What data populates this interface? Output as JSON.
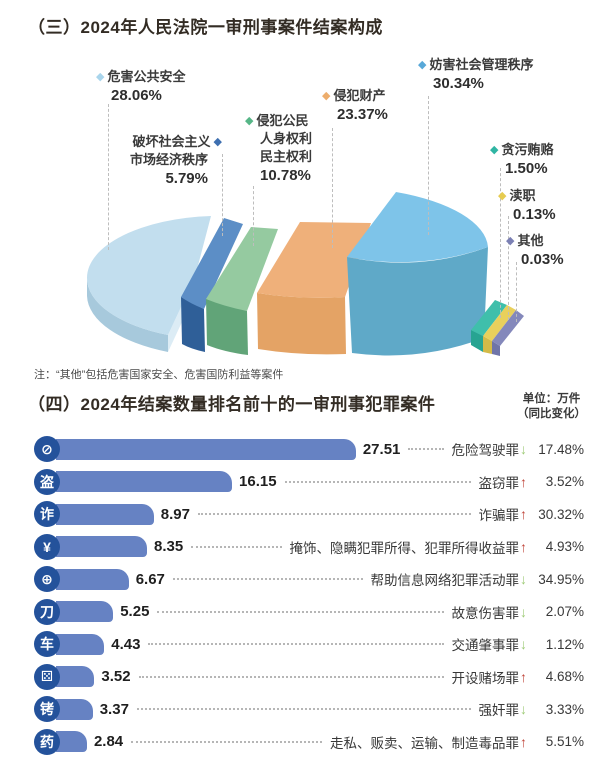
{
  "pie": {
    "title": "（三）2024年人民法院一审刑事案件结案构成",
    "note": "注：“其他”包括危害国家安全、危害国防利益等案件",
    "labels": {
      "public_safety": {
        "lines": [
          "危害公共安全"
        ],
        "pct": "28.06%",
        "color": "#A9D5EC"
      },
      "market_economy": {
        "lines": [
          "破坏社会主义",
          "市场经济秩序"
        ],
        "pct": "5.79%",
        "color": "#3E6FB0"
      },
      "citizen_rights": {
        "lines": [
          "侵犯公民",
          "人身权利",
          "民主权利"
        ],
        "pct": "10.78%",
        "color": "#56B687"
      },
      "property": {
        "lines": [
          "侵犯财产"
        ],
        "pct": "23.37%",
        "color": "#EDAD6C"
      },
      "social_order": {
        "lines": [
          "妨害社会管理秩序"
        ],
        "pct": "30.34%",
        "color": "#58A8D8"
      },
      "corruption": {
        "lines": [
          "贪污贿赂"
        ],
        "pct": "1.50%",
        "color": "#2FB5A3"
      },
      "dereliction": {
        "lines": [
          "渎职"
        ],
        "pct": "0.13%",
        "color": "#E6CB50"
      },
      "other": {
        "lines": [
          "其他"
        ],
        "pct": "0.03%",
        "color": "#7B80B4"
      }
    }
  },
  "bars": {
    "title": "（四）2024年结案数量排名前十的一审刑事犯罪案件",
    "unit_line1": "单位：万件",
    "unit_line2": "（同比变化）",
    "rows": [
      {
        "icon": "⊘",
        "name": "危险驾驶罪",
        "value": "27.51",
        "arrow": "↓",
        "pct": "17.48%"
      },
      {
        "icon": "盗",
        "name": "盗窃罪",
        "value": "16.15",
        "arrow": "↑",
        "pct": "3.52%"
      },
      {
        "icon": "诈",
        "name": "诈骗罪",
        "value": "8.97",
        "arrow": "↑",
        "pct": "30.32%"
      },
      {
        "icon": "¥",
        "name": "掩饰、隐瞒犯罪所得、犯罪所得收益罪",
        "value": "8.35",
        "arrow": "↑",
        "pct": "4.93%"
      },
      {
        "icon": "⊕",
        "name": "帮助信息网络犯罪活动罪",
        "value": "6.67",
        "arrow": "↓",
        "pct": "34.95%"
      },
      {
        "icon": "刀",
        "name": "故意伤害罪",
        "value": "5.25",
        "arrow": "↓",
        "pct": "2.07%"
      },
      {
        "icon": "车",
        "name": "交通肇事罪",
        "value": "4.43",
        "arrow": "↓",
        "pct": "1.12%"
      },
      {
        "icon": "⚄",
        "name": "开设赌场罪",
        "value": "3.52",
        "arrow": "↑",
        "pct": "4.68%"
      },
      {
        "icon": "铐",
        "name": "强奸罪",
        "value": "3.37",
        "arrow": "↓",
        "pct": "3.33%"
      },
      {
        "icon": "药",
        "name": "走私、贩卖、运输、制造毒品罪",
        "value": "2.84",
        "arrow": "↑",
        "pct": "5.51%"
      }
    ]
  },
  "chart_data": [
    {
      "type": "pie",
      "style": "3d-exploded",
      "title": "（三）2024年人民法院一审刑事案件结案构成",
      "labels": [
        "危害公共安全",
        "破坏社会主义市场经济秩序",
        "侵犯公民人身权利民主权利",
        "侵犯财产",
        "妨害社会管理秩序",
        "贪污贿赂",
        "渎职",
        "其他"
      ],
      "values": [
        28.06,
        5.79,
        10.78,
        23.37,
        30.34,
        1.5,
        0.13,
        0.03
      ],
      "unit": "%",
      "colors": [
        "#A9D5EC",
        "#3E6FB0",
        "#56B687",
        "#EDAD6C",
        "#58A8D8",
        "#2FB5A3",
        "#E6CB50",
        "#7B80B4"
      ],
      "note": "注：“其他”包括危害国家安全、危害国防利益等案件"
    },
    {
      "type": "bar",
      "orientation": "horizontal",
      "title": "（四）2024年结案数量排名前十的一审刑事犯罪案件",
      "unit": "万件",
      "unit_note": "单位：万件（同比变化）",
      "categories": [
        "危险驾驶罪",
        "盗窃罪",
        "诈骗罪",
        "掩饰、隐瞒犯罪所得、犯罪所得收益罪",
        "帮助信息网络犯罪活动罪",
        "故意伤害罪",
        "交通肇事罪",
        "开设赌场罪",
        "强奸罪",
        "走私、贩卖、运输、制造毒品罪"
      ],
      "values": [
        27.51,
        16.15,
        8.97,
        8.35,
        6.67,
        5.25,
        4.43,
        3.52,
        3.37,
        2.84
      ],
      "yoy_change_pct": [
        -17.48,
        3.52,
        30.32,
        4.93,
        -34.95,
        -2.07,
        -1.12,
        4.68,
        -3.33,
        5.51
      ],
      "bar_color": "#6682C3",
      "icon_circle_color": "#24529B",
      "up_arrow_color": "#C0453A",
      "down_arrow_color": "#9FCB77"
    }
  ]
}
